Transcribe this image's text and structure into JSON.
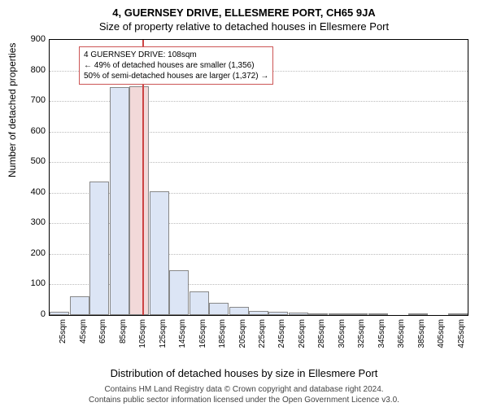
{
  "title_main": "4, GUERNSEY DRIVE, ELLESMERE PORT, CH65 9JA",
  "title_sub": "Size of property relative to detached houses in Ellesmere Port",
  "ylabel": "Number of detached properties",
  "xlabel": "Distribution of detached houses by size in Ellesmere Port",
  "footer1": "Contains HM Land Registry data © Crown copyright and database right 2024.",
  "footer2": "Contains public sector information licensed under the Open Government Licence v3.0.",
  "annotation": {
    "line1": "4 GUERNSEY DRIVE: 108sqm",
    "line2": "← 49% of detached houses are smaller (1,356)",
    "line3": "50% of semi-detached houses are larger (1,372) →"
  },
  "chart": {
    "type": "histogram",
    "ylim": [
      0,
      900
    ],
    "ytick_step": 100,
    "xticks": [
      "25sqm",
      "45sqm",
      "65sqm",
      "85sqm",
      "105sqm",
      "125sqm",
      "145sqm",
      "165sqm",
      "185sqm",
      "205sqm",
      "225sqm",
      "245sqm",
      "265sqm",
      "285sqm",
      "305sqm",
      "325sqm",
      "345sqm",
      "365sqm",
      "385sqm",
      "405sqm",
      "425sqm"
    ],
    "bars": [
      {
        "value": 12
      },
      {
        "value": 60
      },
      {
        "value": 437
      },
      {
        "value": 745
      },
      {
        "value": 748,
        "highlight": true
      },
      {
        "value": 406
      },
      {
        "value": 147
      },
      {
        "value": 77
      },
      {
        "value": 39
      },
      {
        "value": 28
      },
      {
        "value": 14
      },
      {
        "value": 12
      },
      {
        "value": 8
      },
      {
        "value": 4
      },
      {
        "value": 2
      },
      {
        "value": 1
      },
      {
        "value": 1
      },
      {
        "value": 0
      },
      {
        "value": 1
      },
      {
        "value": 0
      },
      {
        "value": 1
      }
    ],
    "bar_fill": "#dce5f5",
    "bar_highlight_fill": "#f2d9d9",
    "vline_color": "#cc4444",
    "grid_color": "#bbbbbb",
    "background": "#ffffff",
    "title_fontsize": 13,
    "label_fontsize": 12,
    "tick_fontsize": 10,
    "annotation_border": "#cc5555",
    "vline_x_index": 4.15
  }
}
